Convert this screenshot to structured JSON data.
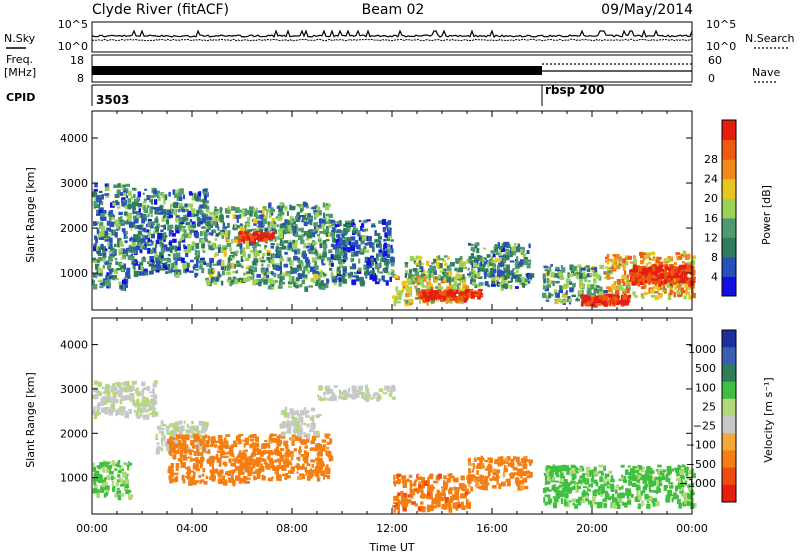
{
  "header": {
    "station": "Clyde River (fitACF)",
    "beam": "Beam 02",
    "date": "09/May/2014"
  },
  "strips": {
    "nsky_label": "N.Sky",
    "nsearch_label": "N.Search",
    "noise_ticks_left": [
      "10^5",
      "10^0"
    ],
    "noise_ticks_right": [
      "10^5",
      "10^0"
    ],
    "freq_label_top": "Freq.",
    "freq_label_unit": "[MHz]",
    "freq_ticks": [
      "18",
      "8"
    ],
    "nave_label": "Nave",
    "nave_ticks": [
      "60",
      "0"
    ],
    "cpid_label": "CPID",
    "cpid_segments": [
      {
        "label": "3503",
        "start_hour": 0
      },
      {
        "label": "rbsp 200",
        "start_hour": 18.0
      }
    ]
  },
  "colors": {
    "power_scale": [
      "#1010e0",
      "#2850b8",
      "#2f7d5a",
      "#4f9a6e",
      "#9ad255",
      "#e9c520",
      "#f08a18",
      "#ee5a10",
      "#e41f10"
    ],
    "velocity_scale": [
      "#e41f10",
      "#f14a0e",
      "#f57e12",
      "#f3a93a",
      "#c8c8c8",
      "#b2d87a",
      "#3fbf3f",
      "#2f7d5a",
      "#3a5fb0",
      "#1a2fa0"
    ],
    "ground_scatter": "#b4b4b4"
  },
  "chart_data": [
    {
      "type": "heatmap",
      "name": "power",
      "ylabel": "Slant Range [km]",
      "ylim": [
        180,
        4600
      ],
      "yticks": [
        1000,
        2000,
        3000,
        4000
      ],
      "xlim": [
        0,
        24
      ],
      "colorbar": {
        "label": "Power [dB]",
        "ticks": [
          "4",
          "8",
          "12",
          "16",
          "20",
          "24",
          "28"
        ],
        "range": [
          0,
          32
        ]
      },
      "regions": [
        {
          "t": [
            0.0,
            1.5
          ],
          "r": [
            700,
            3000
          ],
          "level": 10
        },
        {
          "t": [
            1.5,
            4.5
          ],
          "r": [
            1000,
            2900
          ],
          "level": 9
        },
        {
          "t": [
            4.5,
            7.0
          ],
          "r": [
            800,
            2500
          ],
          "level": 12
        },
        {
          "t": [
            7.0,
            9.5
          ],
          "r": [
            700,
            2600
          ],
          "level": 11
        },
        {
          "t": [
            9.5,
            12.0
          ],
          "r": [
            800,
            2200
          ],
          "level": 8
        },
        {
          "t": [
            12.0,
            15.0
          ],
          "r": [
            350,
            1000
          ],
          "level": 20
        },
        {
          "t": [
            12.5,
            16.5
          ],
          "r": [
            900,
            1400
          ],
          "level": 13
        },
        {
          "t": [
            15.0,
            17.5
          ],
          "r": [
            700,
            1700
          ],
          "level": 10
        },
        {
          "t": [
            18.0,
            20.5
          ],
          "r": [
            400,
            1200
          ],
          "level": 12
        },
        {
          "t": [
            20.5,
            24.0
          ],
          "r": [
            500,
            1500
          ],
          "level": 21
        }
      ],
      "hotspots": [
        {
          "t": [
            5.8,
            7.2
          ],
          "r": [
            1750,
            1950
          ],
          "level": 28
        },
        {
          "t": [
            13.0,
            15.5
          ],
          "r": [
            450,
            650
          ],
          "level": 27
        },
        {
          "t": [
            21.5,
            24.0
          ],
          "r": [
            800,
            1200
          ],
          "level": 26
        },
        {
          "t": [
            19.5,
            21.5
          ],
          "r": [
            350,
            550
          ],
          "level": 26
        }
      ]
    },
    {
      "type": "heatmap",
      "name": "velocity",
      "ylabel": "Slant Range [km]",
      "ylim": [
        180,
        4600
      ],
      "yticks": [
        1000,
        2000,
        3000,
        4000
      ],
      "xlim": [
        0,
        24
      ],
      "xticks": [
        "00:00",
        "04:00",
        "08:00",
        "12:00",
        "16:00",
        "20:00",
        "00:00"
      ],
      "xlabel": "Time UT",
      "colorbar": {
        "label": "Velocity [m s⁻¹]",
        "ticks": [
          "1000",
          "500",
          "100",
          "25",
          "−25",
          "−100",
          "−500",
          "−1000"
        ],
        "range": [
          -1000,
          1000
        ]
      },
      "regions": [
        {
          "t": [
            0.0,
            1.5
          ],
          "r": [
            600,
            1400
          ],
          "vel": 120
        },
        {
          "t": [
            0.0,
            2.5
          ],
          "r": [
            2400,
            3200
          ],
          "vel": 20
        },
        {
          "t": [
            2.5,
            4.5
          ],
          "r": [
            1600,
            2300
          ],
          "vel": 15
        },
        {
          "t": [
            3.0,
            6.5
          ],
          "r": [
            900,
            2000
          ],
          "vel": -180
        },
        {
          "t": [
            6.5,
            9.5
          ],
          "r": [
            1000,
            2000
          ],
          "vel": -160
        },
        {
          "t": [
            7.5,
            9.0
          ],
          "r": [
            2000,
            2600
          ],
          "vel": 10
        },
        {
          "t": [
            9.0,
            12.0
          ],
          "r": [
            2800,
            3100
          ],
          "vel": 5
        },
        {
          "t": [
            12.0,
            15.0
          ],
          "r": [
            300,
            1100
          ],
          "vel": -220
        },
        {
          "t": [
            15.0,
            17.5
          ],
          "r": [
            800,
            1500
          ],
          "vel": -170
        },
        {
          "t": [
            18.0,
            24.0
          ],
          "r": [
            400,
            1300
          ],
          "vel": 140
        }
      ]
    }
  ]
}
